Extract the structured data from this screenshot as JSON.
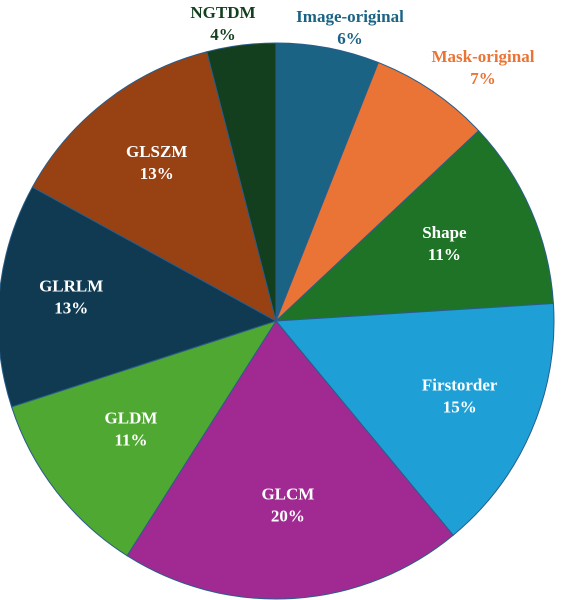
{
  "chart_data": {
    "type": "pie",
    "title": "",
    "slices": [
      {
        "name": "Image-original",
        "value": 6,
        "label": "6%",
        "color": "#1b6385",
        "label_color": "#1b6385",
        "label_position": "outside"
      },
      {
        "name": "Mask-original",
        "value": 7,
        "label": "7%",
        "color": "#ea7435",
        "label_color": "#ea7435",
        "label_position": "outside"
      },
      {
        "name": "Shape",
        "value": 11,
        "label": "11%",
        "color": "#1f7326",
        "label_color": "#ffffff",
        "label_position": "inside"
      },
      {
        "name": "Firstorder",
        "value": 15,
        "label": "15%",
        "color": "#1ea0d6",
        "label_color": "#ffffff",
        "label_position": "inside"
      },
      {
        "name": "GLCM",
        "value": 20,
        "label": "20%",
        "color": "#a02a92",
        "label_color": "#ffffff",
        "label_position": "inside"
      },
      {
        "name": "GLDM",
        "value": 11,
        "label": "11%",
        "color": "#4fa832",
        "label_color": "#ffffff",
        "label_position": "inside"
      },
      {
        "name": "GLRLM",
        "value": 13,
        "label": "13%",
        "color": "#0f3a52",
        "label_color": "#ffffff",
        "label_position": "inside"
      },
      {
        "name": "GLSZM",
        "value": 13,
        "label": "13%",
        "color": "#984112",
        "label_color": "#ffffff",
        "label_position": "inside"
      },
      {
        "name": "NGTDM",
        "value": 4,
        "label": "4%",
        "color": "#133f1e",
        "label_color": "#133f1e",
        "label_position": "outside"
      }
    ],
    "start_angle": "12 o'clock",
    "direction": "clockwise",
    "legend": "none"
  }
}
